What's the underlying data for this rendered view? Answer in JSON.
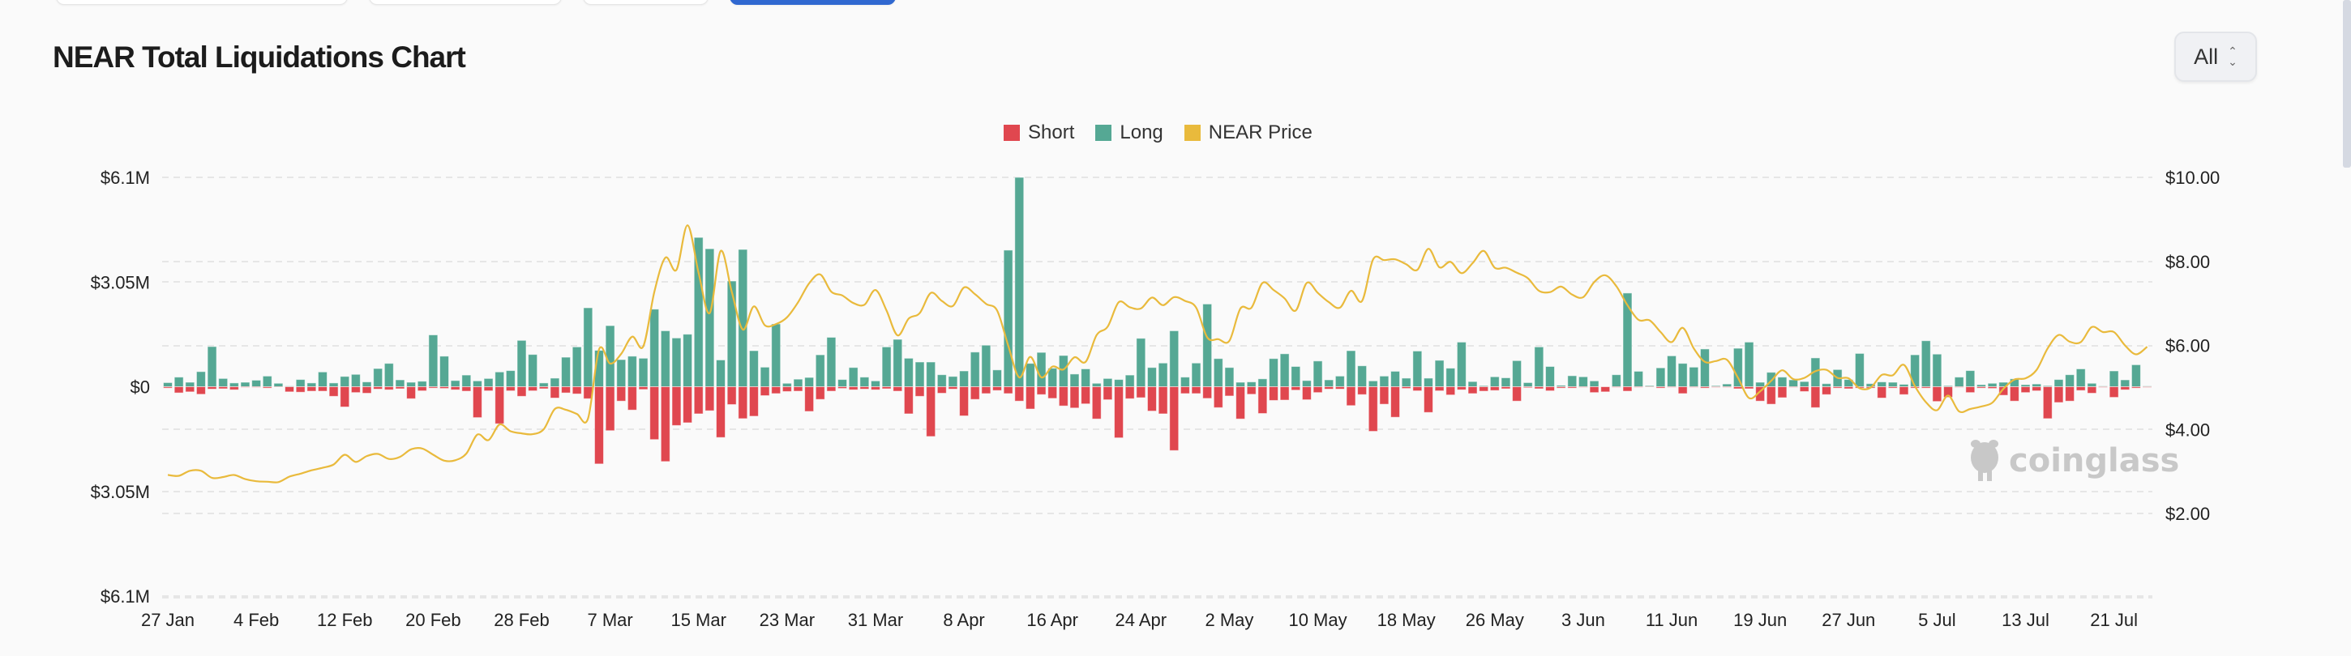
{
  "header": {
    "title": "NEAR Total Liquidations Chart",
    "range_select": "All"
  },
  "legend": [
    {
      "label": "Short",
      "color": "#e0474f"
    },
    {
      "label": "Long",
      "color": "#55a894"
    },
    {
      "label": "NEAR Price",
      "color": "#e9ba3c"
    }
  ],
  "watermark": "coinglass",
  "chart_data": {
    "type": "bar+line",
    "title": "NEAR Total Liquidations Chart",
    "x_start": "27 Jan",
    "x_step_days": 1,
    "xticks": [
      "27 Jan",
      "4 Feb",
      "12 Feb",
      "20 Feb",
      "28 Feb",
      "7 Mar",
      "15 Mar",
      "23 Mar",
      "31 Mar",
      "8 Apr",
      "16 Apr",
      "24 Apr",
      "2 May",
      "10 May",
      "18 May",
      "26 May",
      "3 Jun",
      "11 Jun",
      "19 Jun",
      "27 Jun",
      "5 Jul",
      "13 Jul",
      "21 Jul"
    ],
    "xtick_every_days": 8,
    "y_left": {
      "unit": "USD millions",
      "range": [
        -6.1,
        6.1
      ],
      "ticks": [
        6.1,
        3.05,
        0,
        -3.05,
        -6.1
      ],
      "tick_labels": [
        "$6.1M",
        "$3.05M",
        "$0",
        "$3.05M",
        "$6.1M"
      ]
    },
    "y_right": {
      "unit": "USD",
      "range": [
        0,
        10
      ],
      "ticks": [
        10,
        8,
        6,
        4,
        2
      ],
      "tick_labels": [
        "$10.00",
        "$8.00",
        "$6.00",
        "$4.00",
        "$2.00"
      ]
    },
    "grid": true,
    "legend_position": "top-center",
    "series": [
      {
        "name": "Long",
        "type": "bar",
        "axis": "left",
        "values": [
          0.12,
          0.28,
          0.13,
          0.44,
          1.17,
          0.24,
          0.11,
          0.13,
          0.19,
          0.31,
          0.1,
          0.02,
          0.21,
          0.11,
          0.43,
          0.11,
          0.3,
          0.36,
          0.14,
          0.53,
          0.68,
          0.2,
          0.13,
          0.16,
          1.51,
          0.89,
          0.18,
          0.34,
          0.17,
          0.24,
          0.43,
          0.47,
          1.35,
          0.94,
          0.11,
          0.25,
          0.86,
          1.16,
          2.3,
          1.06,
          1.78,
          0.79,
          0.89,
          0.83,
          2.26,
          1.63,
          1.42,
          1.53,
          4.35,
          4.02,
          0.78,
          3.08,
          4.0,
          1.05,
          0.57,
          1.83,
          0.1,
          0.22,
          0.27,
          0.93,
          1.44,
          0.21,
          0.56,
          0.28,
          0.17,
          1.16,
          1.38,
          0.83,
          0.72,
          0.72,
          0.35,
          0.3,
          0.46,
          1.01,
          1.21,
          0.49,
          3.98,
          6.1,
          0.68,
          1.0,
          0.54,
          0.91,
          0.37,
          0.52,
          0.1,
          0.24,
          0.21,
          0.34,
          1.41,
          0.56,
          0.69,
          1.63,
          0.28,
          0.69,
          2.41,
          0.82,
          0.56,
          0.13,
          0.14,
          0.23,
          0.82,
          0.96,
          0.59,
          0.18,
          0.75,
          0.2,
          0.31,
          1.05,
          0.61,
          0.17,
          0.31,
          0.45,
          0.25,
          1.04,
          0.25,
          0.77,
          0.54,
          1.3,
          0.15,
          0.03,
          0.29,
          0.26,
          0.76,
          0.12,
          1.16,
          0.59,
          0.04,
          0.32,
          0.29,
          0.17,
          0.0,
          0.35,
          2.73,
          0.45,
          0.03,
          0.55,
          0.9,
          0.68,
          0.57,
          1.1,
          0.03,
          0.08,
          1.12,
          1.3,
          0.13,
          0.42,
          0.28,
          0.2,
          0.15,
          0.84,
          0.09,
          0.5,
          0.21,
          0.97,
          0.09,
          0.14,
          0.13,
          0.07,
          0.93,
          1.34,
          0.95,
          0.03,
          0.28,
          0.47,
          0.06,
          0.1,
          0.13,
          0.23,
          0.06,
          0.08,
          0.03,
          0.21,
          0.35,
          0.52,
          0.1,
          0.02,
          0.46,
          0.2,
          0.64,
          0.02
        ]
      },
      {
        "name": "Short",
        "type": "bar",
        "axis": "left",
        "values": [
          0.04,
          0.18,
          0.15,
          0.22,
          0.07,
          0.06,
          0.09,
          0.02,
          0.02,
          0.04,
          0.01,
          0.15,
          0.16,
          0.13,
          0.13,
          0.28,
          0.59,
          0.17,
          0.19,
          0.07,
          0.09,
          0.06,
          0.35,
          0.12,
          0.04,
          0.05,
          0.09,
          0.13,
          0.9,
          0.12,
          1.08,
          0.12,
          0.28,
          0.12,
          0.06,
          0.33,
          0.18,
          0.21,
          0.35,
          2.25,
          1.28,
          0.42,
          0.68,
          0.08,
          1.54,
          2.18,
          1.13,
          1.05,
          0.79,
          0.7,
          1.48,
          0.52,
          0.93,
          0.86,
          0.26,
          0.2,
          0.14,
          0.13,
          0.72,
          0.37,
          0.13,
          0.05,
          0.09,
          0.07,
          0.09,
          0.06,
          0.13,
          0.79,
          0.28,
          1.45,
          0.19,
          0.07,
          0.85,
          0.37,
          0.2,
          0.11,
          0.2,
          0.42,
          0.65,
          0.23,
          0.34,
          0.56,
          0.62,
          0.5,
          0.94,
          0.38,
          1.49,
          0.35,
          0.32,
          0.71,
          0.79,
          1.86,
          0.2,
          0.2,
          0.34,
          0.61,
          0.27,
          0.94,
          0.22,
          0.78,
          0.4,
          0.39,
          0.1,
          0.38,
          0.17,
          0.07,
          0.07,
          0.55,
          0.23,
          1.3,
          0.51,
          0.89,
          0.05,
          0.12,
          0.75,
          0.12,
          0.24,
          0.09,
          0.2,
          0.13,
          0.11,
          0.06,
          0.42,
          0.03,
          0.06,
          0.12,
          0.04,
          0.04,
          0.02,
          0.17,
          0.15,
          0.02,
          0.13,
          0.02,
          0.01,
          0.04,
          0.02,
          0.2,
          0.02,
          0.04,
          0.02,
          0.02,
          0.06,
          0.06,
          0.42,
          0.51,
          0.32,
          0.02,
          0.14,
          0.61,
          0.23,
          0.04,
          0.06,
          0.04,
          0.04,
          0.33,
          0.04,
          0.23,
          0.04,
          0.04,
          0.43,
          0.31,
          0.02,
          0.17,
          0.04,
          0.05,
          0.25,
          0.42,
          0.17,
          0.12,
          0.93,
          0.46,
          0.42,
          0.11,
          0.19,
          0.02,
          0.31,
          0.09,
          0.04,
          0.02
        ]
      },
      {
        "name": "NEAR Price",
        "type": "line",
        "axis": "right",
        "values": [
          2.92,
          2.9,
          3.02,
          3.02,
          2.85,
          2.87,
          2.92,
          2.82,
          2.77,
          2.76,
          2.75,
          2.88,
          2.95,
          3.03,
          3.09,
          3.17,
          3.4,
          3.23,
          3.37,
          3.42,
          3.3,
          3.35,
          3.53,
          3.55,
          3.4,
          3.26,
          3.27,
          3.43,
          3.88,
          3.75,
          4.12,
          3.96,
          3.91,
          3.89,
          4.01,
          4.49,
          4.47,
          4.37,
          4.26,
          5.91,
          5.57,
          5.8,
          6.21,
          5.98,
          7.28,
          8.09,
          7.8,
          8.86,
          7.73,
          6.77,
          8.25,
          7.28,
          6.38,
          6.93,
          6.48,
          6.51,
          6.67,
          7.03,
          7.48,
          7.69,
          7.28,
          7.19,
          7.01,
          6.97,
          7.32,
          6.83,
          6.24,
          6.64,
          6.77,
          7.25,
          7.06,
          6.94,
          7.38,
          7.22,
          6.99,
          6.83,
          6.0,
          5.24,
          5.73,
          5.24,
          5.5,
          5.43,
          5.72,
          5.61,
          6.25,
          6.45,
          7.03,
          6.91,
          6.88,
          7.14,
          6.96,
          7.15,
          7.06,
          6.9,
          6.19,
          6.15,
          6.11,
          6.88,
          6.9,
          7.49,
          7.32,
          7.12,
          6.83,
          7.49,
          7.25,
          7.03,
          6.9,
          7.3,
          7.06,
          8.05,
          8.03,
          8.05,
          7.93,
          7.8,
          8.3,
          7.86,
          7.99,
          7.72,
          7.96,
          8.25,
          7.85,
          7.85,
          7.73,
          7.6,
          7.3,
          7.27,
          7.4,
          7.21,
          7.15,
          7.51,
          7.67,
          7.41,
          6.96,
          6.61,
          6.6,
          6.32,
          6.08,
          6.42,
          5.93,
          5.61,
          5.63,
          5.66,
          5.23,
          4.75,
          4.91,
          5.16,
          5.41,
          5.2,
          5.23,
          5.39,
          5.42,
          5.23,
          5.22,
          4.98,
          5.0,
          5.3,
          5.29,
          5.54,
          5.03,
          4.65,
          4.46,
          4.81,
          4.43,
          4.49,
          4.55,
          4.64,
          4.97,
          5.19,
          5.22,
          5.42,
          5.93,
          6.25,
          6.09,
          6.08,
          6.44,
          6.32,
          6.32,
          6.0,
          5.79,
          5.97
        ]
      }
    ]
  }
}
